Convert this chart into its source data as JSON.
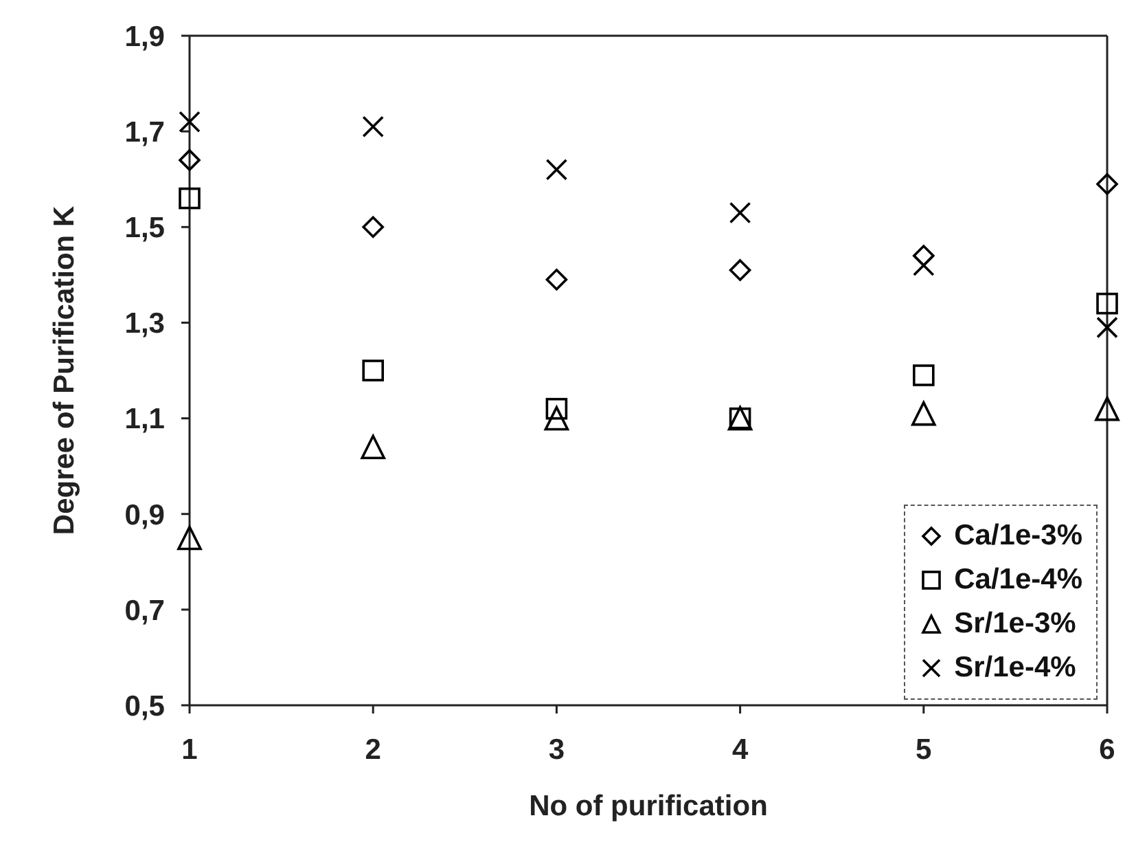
{
  "chart_data": {
    "type": "scatter",
    "xlabel": "No of purification",
    "ylabel": "Degree of Purification K",
    "x": [
      1,
      2,
      3,
      4,
      5,
      6
    ],
    "series": [
      {
        "name": "Ca/1e-3%",
        "color": "#000000",
        "marker": "diamond",
        "values": [
          1.64,
          1.5,
          1.39,
          1.41,
          1.44,
          1.59
        ]
      },
      {
        "name": "Ca/1e-4%",
        "color": "#000000",
        "marker": "square",
        "values": [
          1.56,
          1.2,
          1.12,
          1.1,
          1.19,
          1.34
        ]
      },
      {
        "name": "Sr/1e-3%",
        "color": "#000000",
        "marker": "triangle",
        "values": [
          0.85,
          1.04,
          1.1,
          1.1,
          1.11,
          1.12
        ]
      },
      {
        "name": "Sr/1e-4%",
        "color": "#000000",
        "marker": "cross",
        "values": [
          1.72,
          1.71,
          1.62,
          1.53,
          1.42,
          1.29
        ]
      }
    ],
    "xlim": [
      1,
      6
    ],
    "xticks": [
      1,
      2,
      3,
      4,
      5,
      6
    ],
    "ylim": [
      0.5,
      1.9
    ],
    "yticks": [
      {
        "value": 0.5,
        "label": "0,5"
      },
      {
        "value": 0.7,
        "label": "0,7"
      },
      {
        "value": 0.9,
        "label": "0,9"
      },
      {
        "value": 1.1,
        "label": "1,1"
      },
      {
        "value": 1.3,
        "label": "1,3"
      },
      {
        "value": 1.5,
        "label": "1,5"
      },
      {
        "value": 1.7,
        "label": "1,7"
      },
      {
        "value": 1.9,
        "label": "1,9"
      }
    ],
    "legend": "bottom right"
  }
}
